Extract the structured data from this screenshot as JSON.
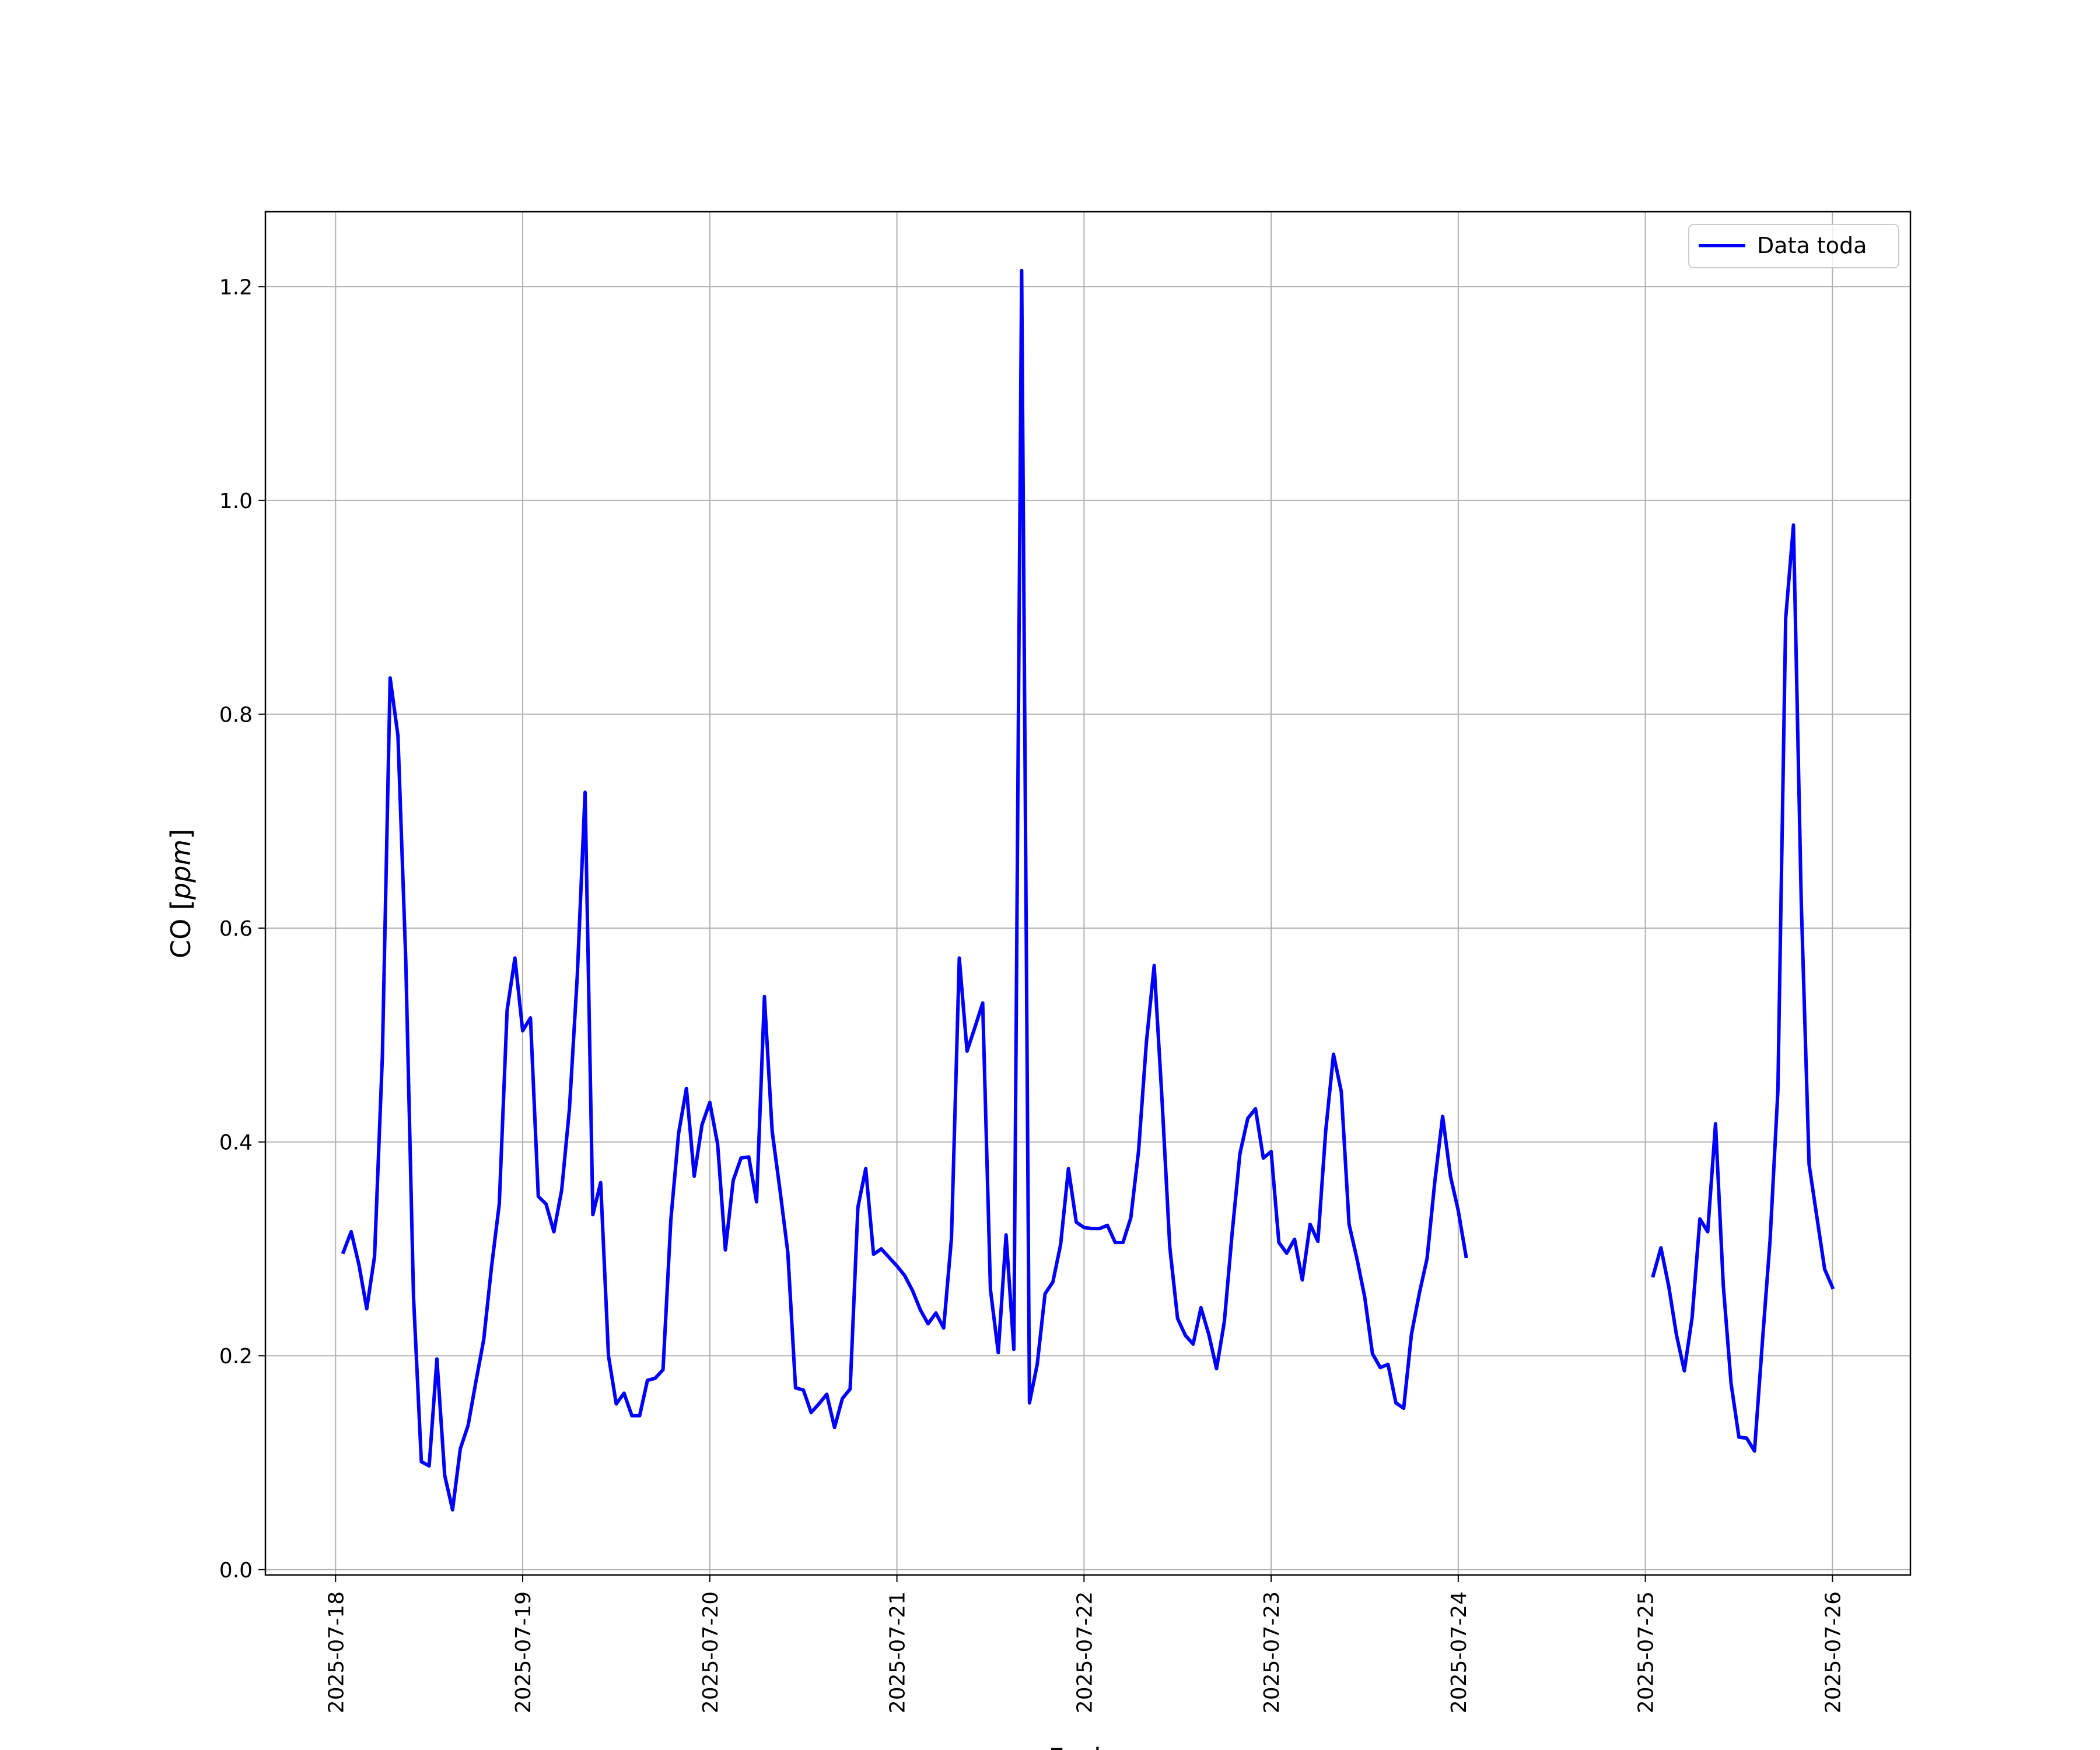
{
  "chart_data": {
    "type": "line",
    "title": "",
    "xlabel": "Fecha",
    "ylabel_main": "CO [",
    "ylabel_unit": "ppm",
    "ylabel_close": "]",
    "ylim": [
      -0.005,
      1.27
    ],
    "xlim": [
      "2025-07-17 15:00",
      "2025-07-26 10:00"
    ],
    "grid": true,
    "legend_position": "top-right",
    "y_ticks": [
      "0.0",
      "0.2",
      "0.4",
      "0.6",
      "0.8",
      "1.0",
      "1.2"
    ],
    "x_ticks": [
      "2025-07-18",
      "2025-07-19",
      "2025-07-20",
      "2025-07-21",
      "2025-07-22",
      "2025-07-23",
      "2025-07-24",
      "2025-07-25",
      "2025-07-26"
    ],
    "series": [
      {
        "name": "Data toda",
        "color": "#0000ff",
        "segments": [
          {
            "start": "2025-07-18 01:00",
            "step_hours": 1,
            "values": [
              0.297,
              0.316,
              0.285,
              0.244,
              0.293,
              0.48,
              0.834,
              0.78,
              0.57,
              0.255,
              0.101,
              0.097,
              0.197,
              0.088,
              0.056,
              0.113,
              0.135,
              0.176,
              0.215,
              0.283,
              0.342,
              0.523,
              0.572,
              0.504,
              0.516,
              0.349,
              0.342,
              0.316,
              0.355,
              0.431,
              0.555,
              0.727,
              0.332,
              0.362,
              0.2,
              0.155,
              0.165,
              0.144,
              0.144,
              0.177,
              0.179,
              0.187,
              0.327,
              0.408,
              0.45,
              0.368,
              0.416,
              0.437,
              0.398,
              0.299,
              0.364,
              0.385,
              0.386,
              0.344,
              0.536,
              0.41,
              0.355,
              0.297,
              0.17,
              0.168,
              0.147,
              0.155,
              0.164,
              0.133,
              0.16,
              0.169,
              0.339,
              0.375,
              0.295,
              0.3,
              0.292,
              0.284,
              0.275,
              0.261,
              0.243,
              0.23,
              0.24,
              0.226,
              0.31,
              0.572,
              0.485,
              0.507,
              0.53,
              0.262,
              0.203,
              0.313,
              0.206,
              1.215,
              0.156,
              0.192,
              0.258,
              0.269,
              0.304,
              0.375,
              0.325,
              0.32,
              0.319,
              0.319,
              0.322,
              0.306,
              0.306,
              0.329,
              0.392,
              0.493,
              0.565,
              0.44,
              0.302,
              0.235,
              0.219,
              0.211,
              0.245,
              0.22,
              0.188,
              0.232,
              0.315,
              0.389,
              0.422,
              0.431,
              0.385,
              0.391,
              0.306,
              0.296,
              0.309,
              0.271,
              0.323,
              0.307,
              0.41,
              0.482,
              0.447,
              0.323,
              0.291,
              0.255,
              0.202,
              0.189,
              0.192,
              0.156,
              0.151,
              0.22,
              0.258,
              0.291,
              0.363,
              0.424,
              0.368,
              0.336,
              0.293
            ]
          },
          {
            "start": "2025-07-25 01:00",
            "step_hours": 1,
            "values": [
              0.275,
              0.301,
              0.265,
              0.219,
              0.186,
              0.236,
              0.328,
              0.316,
              0.417,
              0.266,
              0.174,
              0.124,
              0.123,
              0.111,
              0.212,
              0.308,
              0.448,
              0.89,
              0.977,
              0.624,
              0.379,
              0.33,
              0.281,
              0.264
            ]
          }
        ]
      }
    ]
  }
}
